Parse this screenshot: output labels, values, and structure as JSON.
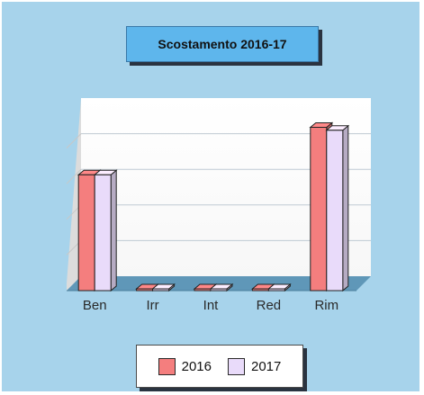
{
  "chart_data": {
    "type": "bar",
    "title": "Scostamento 2016-17",
    "categories": [
      "Ben",
      "Irr",
      "Int",
      "Red",
      "Rim"
    ],
    "series": [
      {
        "name": "2016",
        "values": [
          39,
          0.4,
          0.6,
          0.4,
          55
        ]
      },
      {
        "name": "2017",
        "values": [
          39,
          0.4,
          0.6,
          0.4,
          54
        ]
      }
    ],
    "ylim": [
      0,
      60
    ],
    "grid": true,
    "legend": "bottom",
    "colors": {
      "2016": "#f47e7e",
      "2017": "#e9dbfa"
    }
  }
}
